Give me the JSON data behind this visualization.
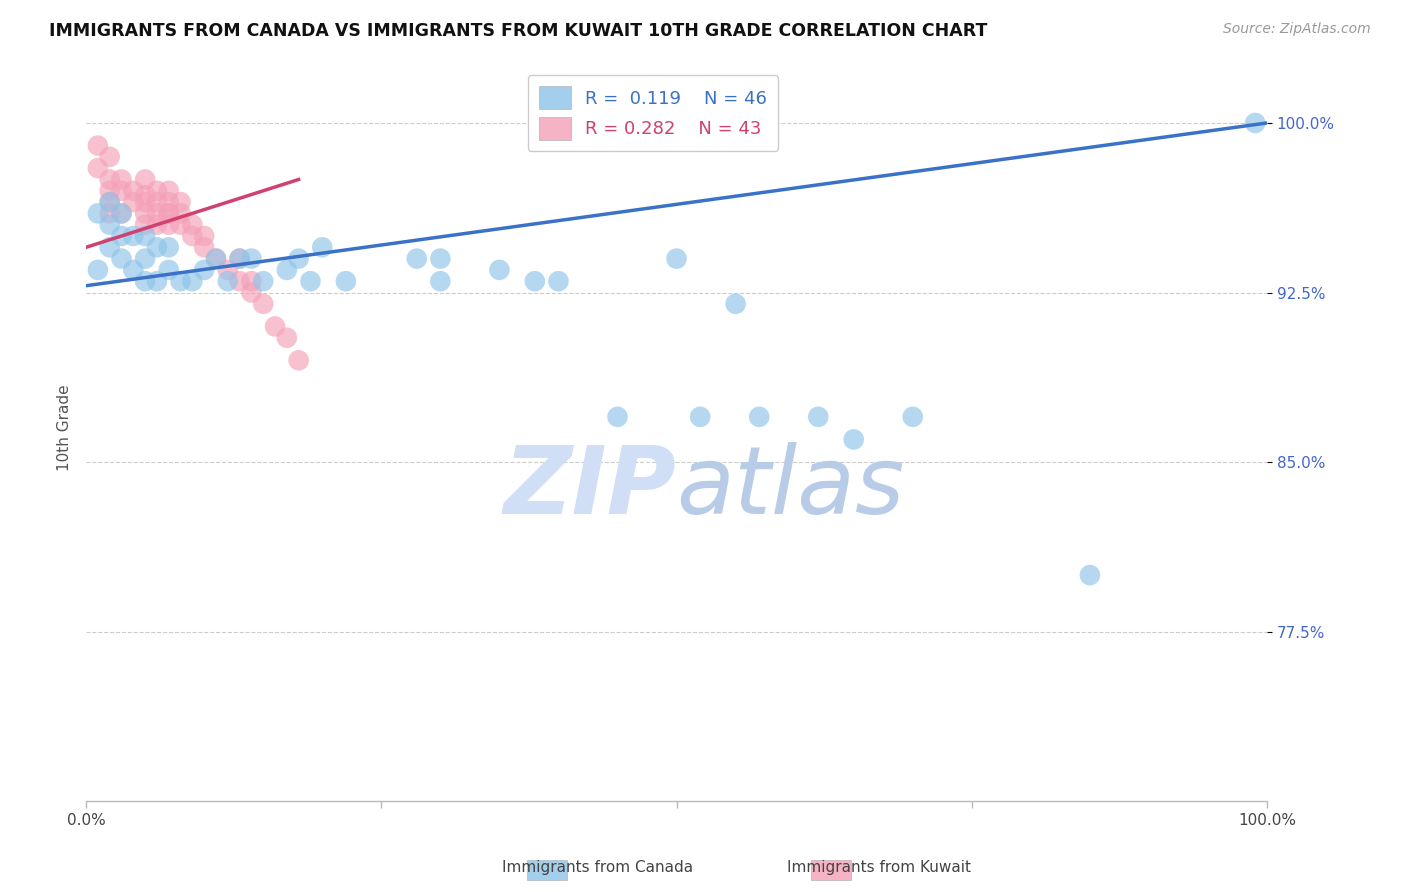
{
  "title": "IMMIGRANTS FROM CANADA VS IMMIGRANTS FROM KUWAIT 10TH GRADE CORRELATION CHART",
  "source": "Source: ZipAtlas.com",
  "ylabel": "10th Grade",
  "ymin": 0.7,
  "ymax": 1.03,
  "xmin": 0.0,
  "xmax": 1.0,
  "canada_R": 0.119,
  "canada_N": 46,
  "kuwait_R": 0.282,
  "kuwait_N": 43,
  "canada_color": "#8EC4E8",
  "kuwait_color": "#F4A0B8",
  "trend_canada_color": "#3A72C8",
  "trend_kuwait_color": "#D04070",
  "background_color": "#FFFFFF",
  "grid_color": "#CCCCCC",
  "watermark_color": "#D0DFF5",
  "ytick_positions": [
    0.775,
    0.85,
    0.925,
    1.0
  ],
  "ytick_labels": [
    "77.5%",
    "85.0%",
    "92.5%",
    "100.0%"
  ],
  "canada_x": [
    0.01,
    0.01,
    0.02,
    0.02,
    0.02,
    0.03,
    0.03,
    0.03,
    0.04,
    0.04,
    0.05,
    0.05,
    0.05,
    0.06,
    0.06,
    0.07,
    0.07,
    0.08,
    0.09,
    0.1,
    0.11,
    0.12,
    0.13,
    0.14,
    0.15,
    0.17,
    0.18,
    0.19,
    0.2,
    0.22,
    0.28,
    0.3,
    0.3,
    0.35,
    0.38,
    0.4,
    0.45,
    0.5,
    0.52,
    0.55,
    0.57,
    0.62,
    0.65,
    0.7,
    0.85,
    0.99
  ],
  "canada_y": [
    0.935,
    0.96,
    0.945,
    0.955,
    0.965,
    0.94,
    0.95,
    0.96,
    0.935,
    0.95,
    0.93,
    0.94,
    0.95,
    0.93,
    0.945,
    0.935,
    0.945,
    0.93,
    0.93,
    0.935,
    0.94,
    0.93,
    0.94,
    0.94,
    0.93,
    0.935,
    0.94,
    0.93,
    0.945,
    0.93,
    0.94,
    0.93,
    0.94,
    0.935,
    0.93,
    0.93,
    0.87,
    0.94,
    0.87,
    0.92,
    0.87,
    0.87,
    0.86,
    0.87,
    0.8,
    1.0
  ],
  "kuwait_x": [
    0.01,
    0.01,
    0.02,
    0.02,
    0.02,
    0.02,
    0.02,
    0.03,
    0.03,
    0.03,
    0.04,
    0.04,
    0.05,
    0.05,
    0.05,
    0.05,
    0.05,
    0.06,
    0.06,
    0.06,
    0.06,
    0.07,
    0.07,
    0.07,
    0.07,
    0.07,
    0.08,
    0.08,
    0.08,
    0.09,
    0.09,
    0.1,
    0.1,
    0.11,
    0.12,
    0.13,
    0.13,
    0.14,
    0.14,
    0.15,
    0.16,
    0.17,
    0.18
  ],
  "kuwait_y": [
    0.99,
    0.98,
    0.985,
    0.975,
    0.965,
    0.97,
    0.96,
    0.975,
    0.96,
    0.97,
    0.965,
    0.97,
    0.96,
    0.955,
    0.968,
    0.975,
    0.965,
    0.96,
    0.955,
    0.965,
    0.97,
    0.96,
    0.955,
    0.96,
    0.965,
    0.97,
    0.955,
    0.96,
    0.965,
    0.95,
    0.955,
    0.945,
    0.95,
    0.94,
    0.935,
    0.93,
    0.94,
    0.925,
    0.93,
    0.92,
    0.91,
    0.905,
    0.895
  ],
  "trend_canada_x0": 0.0,
  "trend_canada_y0": 0.928,
  "trend_canada_x1": 1.0,
  "trend_canada_y1": 1.0,
  "trend_kuwait_x0": 0.0,
  "trend_kuwait_y0": 0.945,
  "trend_kuwait_x1": 0.18,
  "trend_kuwait_y1": 0.975
}
